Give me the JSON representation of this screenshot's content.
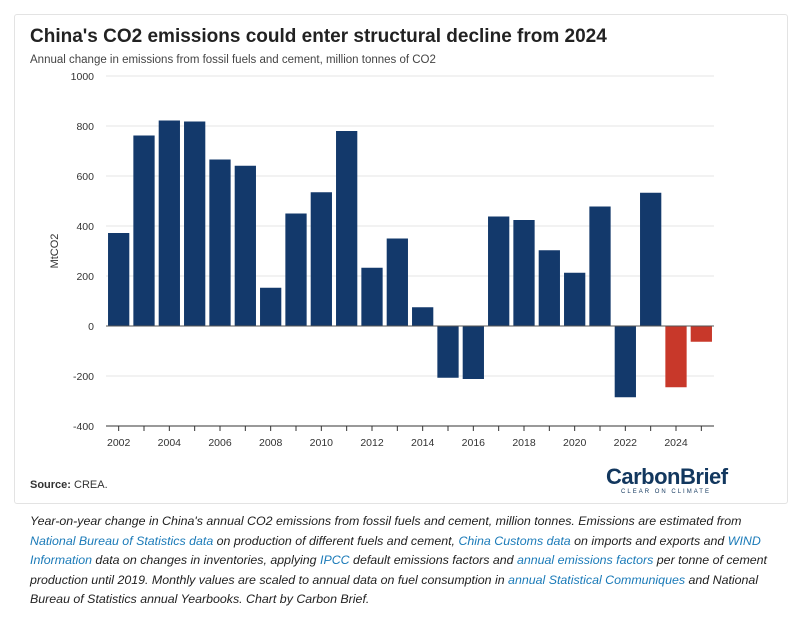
{
  "title": "China's CO2 emissions could enter structural decline from 2024",
  "subtitle": "Annual change in emissions from fossil fuels and cement, million tonnes of CO2",
  "source_label": "Source:",
  "source_text": "CREA.",
  "logo": {
    "main": "CarbonBrief",
    "tagline": "CLEAR ON CLIMATE"
  },
  "colors": {
    "historical": "#13396b",
    "projected": "#c8382a",
    "grid": "#e6e6e6",
    "axis": "#333333"
  },
  "caption": {
    "t1": "Year-on-year change in China's annual CO2 emissions from fossil fuels and cement, million tonnes. Emissions are estimated from ",
    "l1": "National Bureau of Statistics data",
    "t2": " on production of different fuels and cement, ",
    "l2": "China Customs data",
    "t3": " on imports and exports and ",
    "l3": "WIND Information",
    "t4": " data on changes in inventories, applying ",
    "l4": "IPCC",
    "t5": " default emissions factors and ",
    "l5": "annual emissions factors",
    "t6": " per tonne of cement production until 2019. Monthly values are scaled to annual data on fuel consumption in ",
    "l6": "annual Statistical Communiques",
    "t7": " and National Bureau of Statistics annual Yearbooks. Chart by Carbon Brief."
  },
  "chart_data": {
    "type": "bar",
    "title": "China's CO2 emissions could enter structural decline from 2024",
    "subtitle": "Annual change in emissions from fossil fuels and cement, million tonnes of CO2",
    "xlabel": "",
    "ylabel": "MtCO2",
    "ylim": [
      -400,
      1000
    ],
    "yticks": [
      -400,
      -200,
      0,
      200,
      400,
      600,
      800,
      1000
    ],
    "xtick_labels": [
      "2002",
      "2004",
      "2006",
      "2008",
      "2010",
      "2012",
      "2014",
      "2016",
      "2018",
      "2020",
      "2022",
      "2024"
    ],
    "grid": true,
    "legend": "none",
    "categories": [
      2002,
      2003,
      2004,
      2005,
      2006,
      2007,
      2008,
      2009,
      2010,
      2011,
      2012,
      2013,
      2014,
      2015,
      2016,
      2017,
      2018,
      2019,
      2020,
      2021,
      2022,
      2023,
      2024,
      2025
    ],
    "values": [
      372,
      762,
      822,
      818,
      666,
      641,
      153,
      450,
      535,
      780,
      233,
      350,
      75,
      -207,
      -212,
      438,
      424,
      303,
      213,
      478,
      -285,
      533,
      -245,
      -63
    ],
    "projected": [
      false,
      false,
      false,
      false,
      false,
      false,
      false,
      false,
      false,
      false,
      false,
      false,
      false,
      false,
      false,
      false,
      false,
      false,
      false,
      false,
      false,
      false,
      true,
      true
    ]
  }
}
